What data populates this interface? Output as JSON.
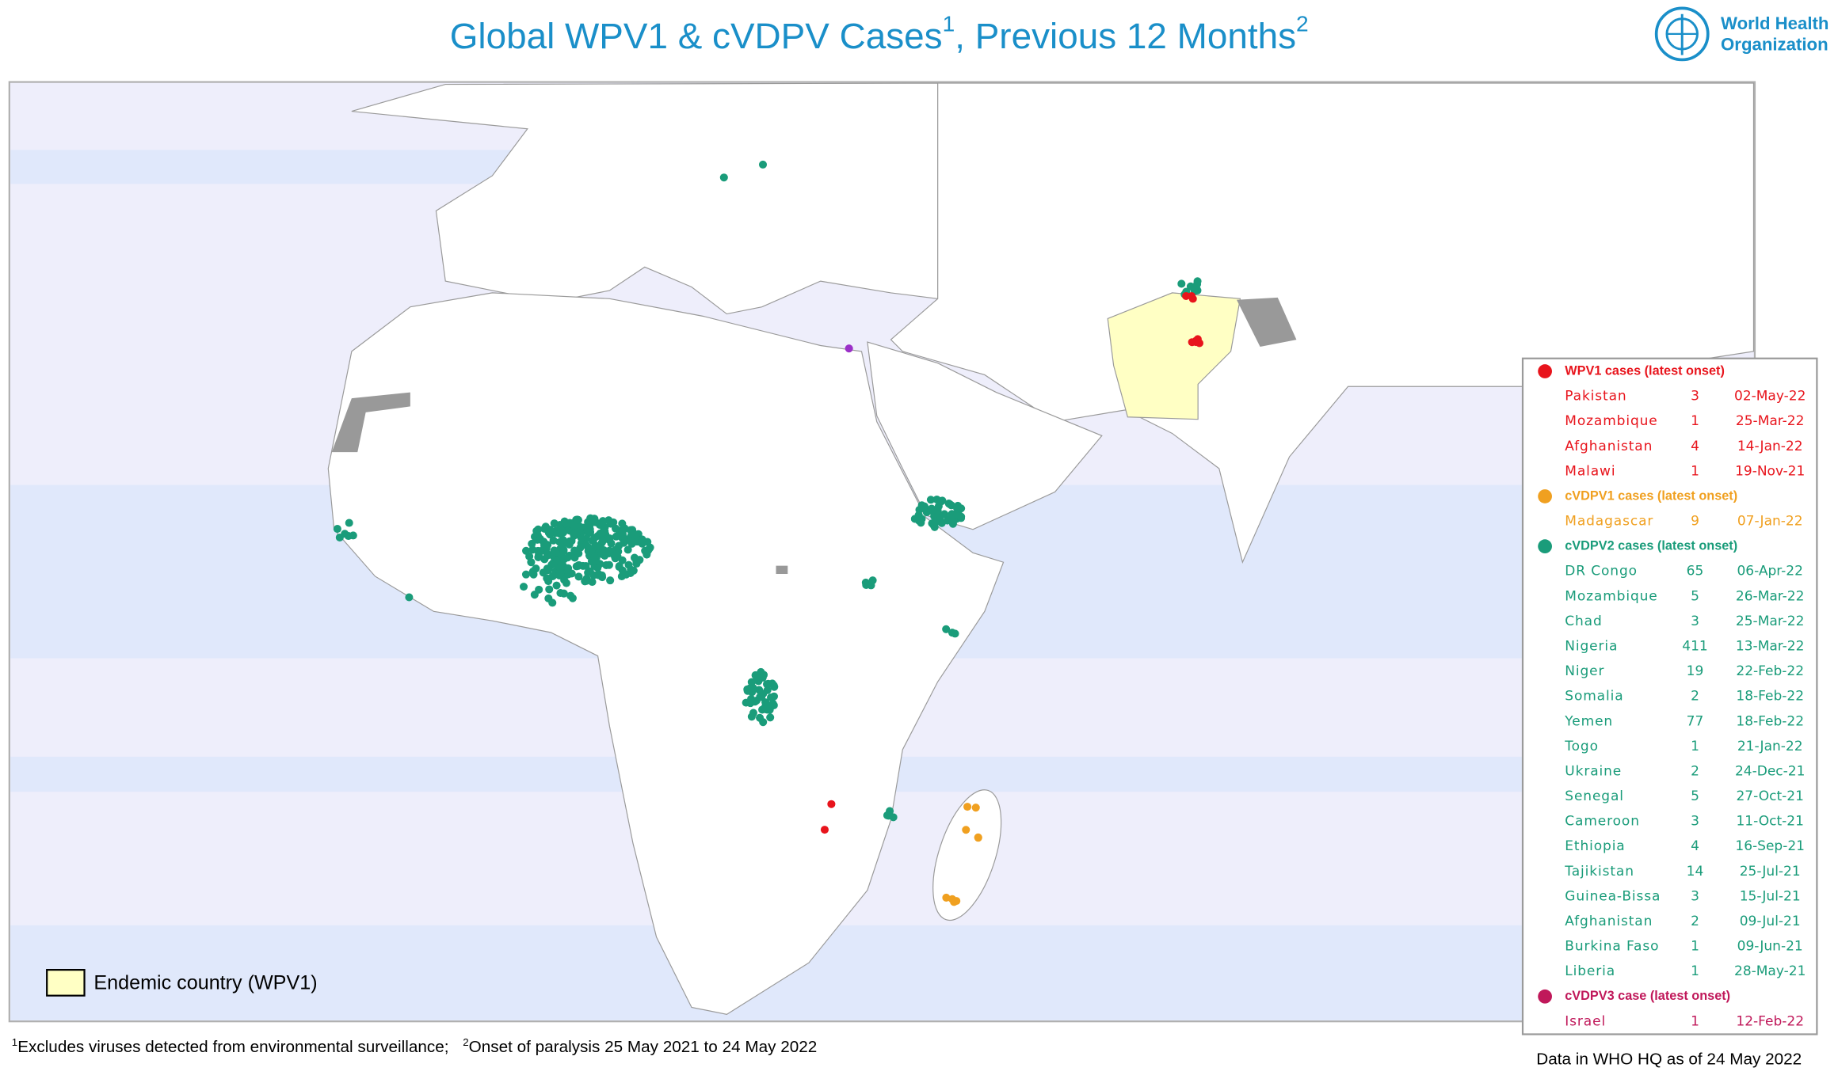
{
  "header": {
    "title": "Global WPV1 & cVDPV Cases",
    "title_sup1": "1",
    "title_rest": ", Previous 12 Months",
    "title_sup2": "2",
    "logo": [
      "World Health",
      "Organization"
    ]
  },
  "legend": {
    "endemic": "Endemic country (WPV1)"
  },
  "table": {
    "groups": [
      {
        "title": "WPV1 cases (latest onset)",
        "color": "#e8141c",
        "rows": [
          [
            "Pakistan",
            "3",
            "02-May-22"
          ],
          [
            "Mozambique",
            "1",
            "25-Mar-22"
          ],
          [
            "Afghanistan",
            "4",
            "14-Jan-22"
          ],
          [
            "Malawi",
            "1",
            "19-Nov-21"
          ]
        ]
      },
      {
        "title": "cVDPV1 cases (latest onset)",
        "color": "#f0a020",
        "rows": [
          [
            "Madagascar",
            "9",
            "07-Jan-22"
          ]
        ]
      },
      {
        "title": "cVDPV2 cases (latest onset)",
        "color": "#1a9c7a",
        "rows": [
          [
            "DR Congo",
            "65",
            "06-Apr-22"
          ],
          [
            "Mozambique",
            "5",
            "26-Mar-22"
          ],
          [
            "Chad",
            "3",
            "25-Mar-22"
          ],
          [
            "Nigeria",
            "411",
            "13-Mar-22"
          ],
          [
            "Niger",
            "19",
            "22-Feb-22"
          ],
          [
            "Somalia",
            "2",
            "18-Feb-22"
          ],
          [
            "Yemen",
            "77",
            "18-Feb-22"
          ],
          [
            "Togo",
            "1",
            "21-Jan-22"
          ],
          [
            "Ukraine",
            "2",
            "24-Dec-21"
          ],
          [
            "Senegal",
            "5",
            "27-Oct-21"
          ],
          [
            "Cameroon",
            "3",
            "11-Oct-21"
          ],
          [
            "Ethiopia",
            "4",
            "16-Sep-21"
          ],
          [
            "Tajikistan",
            "14",
            "25-Jul-21"
          ],
          [
            "Guinea-Bissa",
            "3",
            "15-Jul-21"
          ],
          [
            "Afghanistan",
            "2",
            "09-Jul-21"
          ],
          [
            "Burkina Faso",
            "1",
            "09-Jun-21"
          ],
          [
            "Liberia",
            "1",
            "28-May-21"
          ]
        ]
      },
      {
        "title": "cVDPV3 case (latest onset)",
        "color": "#c0185a",
        "rows": [
          [
            "Israel",
            "1",
            "12-Feb-22"
          ]
        ]
      }
    ]
  },
  "footnotes": {
    "sup1": "1",
    "note1": "Excludes viruses detected from environmental surveillance;",
    "sup2": "2",
    "note2": "Onset of paralysis 25 May 2021 to 24 May 2022"
  },
  "data_note": "Data in WHO HQ as of 24 May 2022"
}
